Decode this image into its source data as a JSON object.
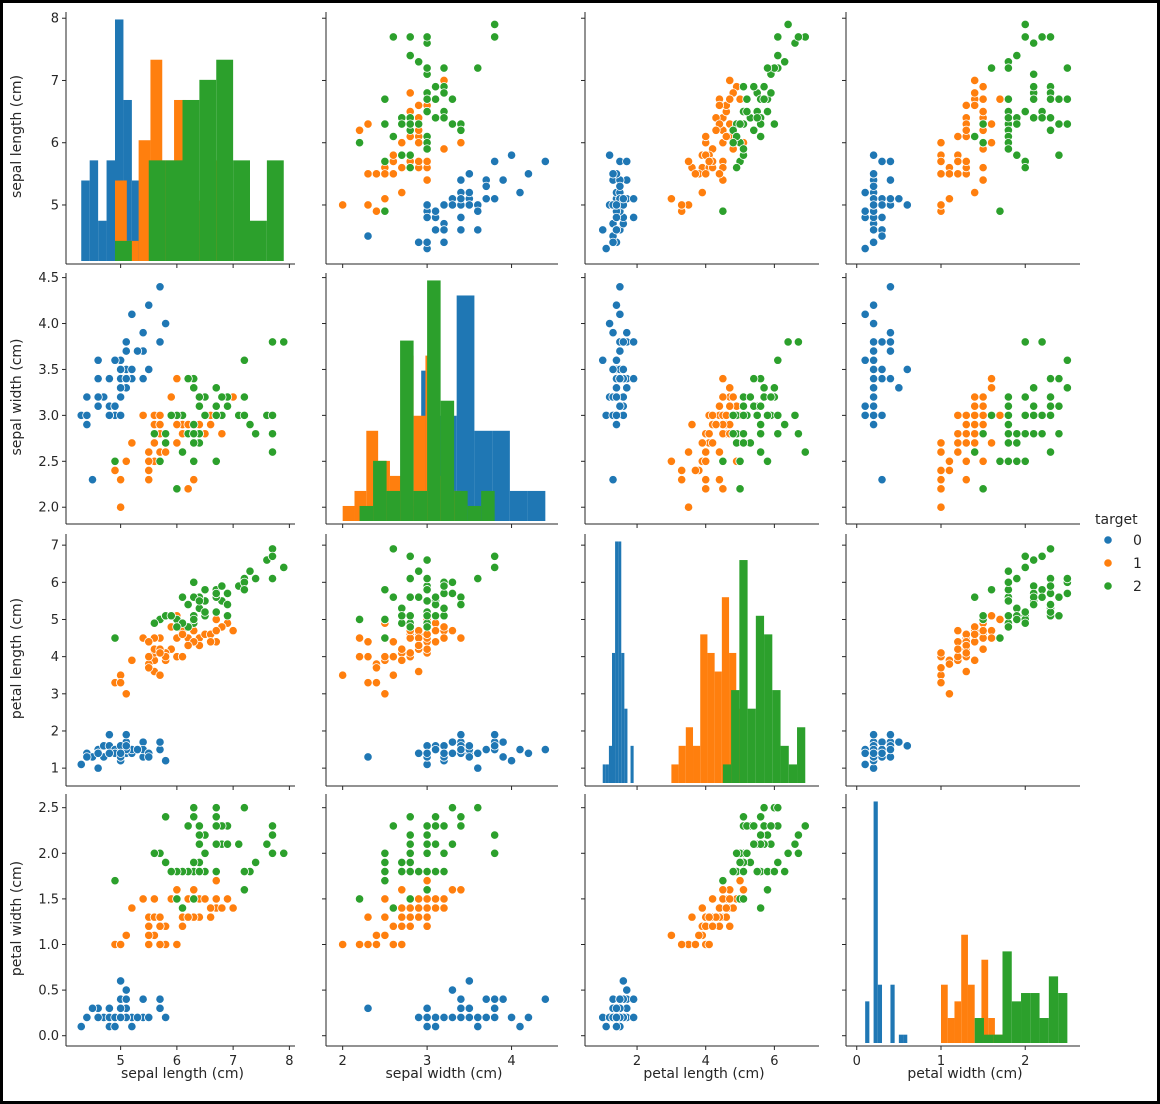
{
  "colors": {
    "0": "#1f77b4",
    "1": "#ff7f0e",
    "2": "#2ca02c",
    "spine": "#262626",
    "point_edge": "#ffffff"
  },
  "chart_data": {
    "type": "scatter",
    "layout": "pairplot",
    "diagonal": "histogram",
    "variables": [
      "sepal length (cm)",
      "sepal width (cm)",
      "petal length (cm)",
      "petal width (cm)"
    ],
    "hue": "target",
    "legend": {
      "title": "target",
      "entries": [
        "0",
        "1",
        "2"
      ],
      "placement": "right"
    },
    "axes": {
      "sepal length (cm)": {
        "lim": [
          4.1,
          8.1
        ],
        "ticks": [
          5,
          6,
          7,
          8
        ]
      },
      "sepal width (cm)": {
        "lim": [
          1.85,
          4.55
        ],
        "ticks": [
          2.0,
          2.5,
          3.0,
          3.5,
          4.0,
          4.5
        ],
        "xticks": [
          2,
          3,
          4
        ]
      },
      "petal length (cm)": {
        "lim": [
          0.6,
          7.3
        ],
        "ticks": [
          1,
          2,
          3,
          4,
          5,
          6,
          7
        ],
        "xticks": [
          2,
          4,
          6
        ]
      },
      "petal width (cm)": {
        "lim": [
          -0.08,
          2.65
        ],
        "ticks": [
          0.0,
          0.5,
          1.0,
          1.5,
          2.0,
          2.5
        ],
        "xticks": [
          0,
          1,
          2
        ]
      }
    },
    "series": [
      {
        "name": "0",
        "values": [
          [
            5.1,
            3.5,
            1.4,
            0.2
          ],
          [
            4.9,
            3.0,
            1.4,
            0.2
          ],
          [
            4.7,
            3.2,
            1.3,
            0.2
          ],
          [
            4.6,
            3.1,
            1.5,
            0.2
          ],
          [
            5.0,
            3.6,
            1.4,
            0.2
          ],
          [
            5.4,
            3.9,
            1.7,
            0.4
          ],
          [
            4.6,
            3.4,
            1.4,
            0.3
          ],
          [
            5.0,
            3.4,
            1.5,
            0.2
          ],
          [
            4.4,
            2.9,
            1.4,
            0.2
          ],
          [
            4.9,
            3.1,
            1.5,
            0.1
          ],
          [
            5.4,
            3.7,
            1.5,
            0.2
          ],
          [
            4.8,
            3.4,
            1.6,
            0.2
          ],
          [
            4.8,
            3.0,
            1.4,
            0.1
          ],
          [
            4.3,
            3.0,
            1.1,
            0.1
          ],
          [
            5.8,
            4.0,
            1.2,
            0.2
          ],
          [
            5.7,
            4.4,
            1.5,
            0.4
          ],
          [
            5.4,
            3.9,
            1.3,
            0.4
          ],
          [
            5.1,
            3.5,
            1.4,
            0.3
          ],
          [
            5.7,
            3.8,
            1.7,
            0.3
          ],
          [
            5.1,
            3.8,
            1.5,
            0.3
          ],
          [
            5.4,
            3.4,
            1.7,
            0.2
          ],
          [
            5.1,
            3.7,
            1.5,
            0.4
          ],
          [
            4.6,
            3.6,
            1.0,
            0.2
          ],
          [
            5.1,
            3.3,
            1.7,
            0.5
          ],
          [
            4.8,
            3.4,
            1.9,
            0.2
          ],
          [
            5.0,
            3.0,
            1.6,
            0.2
          ],
          [
            5.0,
            3.4,
            1.6,
            0.4
          ],
          [
            5.2,
            3.5,
            1.5,
            0.2
          ],
          [
            5.2,
            3.4,
            1.4,
            0.2
          ],
          [
            4.7,
            3.2,
            1.6,
            0.2
          ],
          [
            4.8,
            3.1,
            1.6,
            0.2
          ],
          [
            5.4,
            3.4,
            1.5,
            0.4
          ],
          [
            5.2,
            4.1,
            1.5,
            0.1
          ],
          [
            5.5,
            4.2,
            1.4,
            0.2
          ],
          [
            4.9,
            3.1,
            1.5,
            0.2
          ],
          [
            5.0,
            3.2,
            1.2,
            0.2
          ],
          [
            5.5,
            3.5,
            1.3,
            0.2
          ],
          [
            4.9,
            3.6,
            1.4,
            0.1
          ],
          [
            4.4,
            3.0,
            1.3,
            0.2
          ],
          [
            5.1,
            3.4,
            1.5,
            0.2
          ],
          [
            5.0,
            3.5,
            1.3,
            0.3
          ],
          [
            4.5,
            2.3,
            1.3,
            0.3
          ],
          [
            4.4,
            3.2,
            1.3,
            0.2
          ],
          [
            5.0,
            3.5,
            1.6,
            0.6
          ],
          [
            5.1,
            3.8,
            1.9,
            0.4
          ],
          [
            4.8,
            3.0,
            1.4,
            0.3
          ],
          [
            5.1,
            3.8,
            1.6,
            0.2
          ],
          [
            4.6,
            3.2,
            1.4,
            0.2
          ],
          [
            5.3,
            3.7,
            1.5,
            0.2
          ],
          [
            5.0,
            3.3,
            1.4,
            0.2
          ]
        ]
      },
      {
        "name": "1",
        "values": [
          [
            7.0,
            3.2,
            4.7,
            1.4
          ],
          [
            6.4,
            3.2,
            4.5,
            1.5
          ],
          [
            6.9,
            3.1,
            4.9,
            1.5
          ],
          [
            5.5,
            2.3,
            4.0,
            1.3
          ],
          [
            6.5,
            2.8,
            4.6,
            1.5
          ],
          [
            5.7,
            2.8,
            4.5,
            1.3
          ],
          [
            6.3,
            3.3,
            4.7,
            1.6
          ],
          [
            4.9,
            2.4,
            3.3,
            1.0
          ],
          [
            6.6,
            2.9,
            4.6,
            1.3
          ],
          [
            5.2,
            2.7,
            3.9,
            1.4
          ],
          [
            5.0,
            2.0,
            3.5,
            1.0
          ],
          [
            5.9,
            3.0,
            4.2,
            1.5
          ],
          [
            6.0,
            2.2,
            4.0,
            1.0
          ],
          [
            6.1,
            2.9,
            4.7,
            1.4
          ],
          [
            5.6,
            2.9,
            3.6,
            1.3
          ],
          [
            6.7,
            3.1,
            4.4,
            1.4
          ],
          [
            5.6,
            3.0,
            4.5,
            1.5
          ],
          [
            5.8,
            2.7,
            4.1,
            1.0
          ],
          [
            6.2,
            2.2,
            4.5,
            1.5
          ],
          [
            5.6,
            2.5,
            3.9,
            1.1
          ],
          [
            5.9,
            3.2,
            4.8,
            1.8
          ],
          [
            6.1,
            2.8,
            4.0,
            1.3
          ],
          [
            6.3,
            2.5,
            4.9,
            1.5
          ],
          [
            6.1,
            2.8,
            4.7,
            1.2
          ],
          [
            6.4,
            2.9,
            4.3,
            1.3
          ],
          [
            6.6,
            3.0,
            4.4,
            1.4
          ],
          [
            6.8,
            2.8,
            4.8,
            1.4
          ],
          [
            6.7,
            3.0,
            5.0,
            1.7
          ],
          [
            6.0,
            2.9,
            4.5,
            1.5
          ],
          [
            5.7,
            2.6,
            3.5,
            1.0
          ],
          [
            5.5,
            2.4,
            3.8,
            1.1
          ],
          [
            5.5,
            2.4,
            3.7,
            1.0
          ],
          [
            5.8,
            2.7,
            3.9,
            1.2
          ],
          [
            6.0,
            2.7,
            5.1,
            1.6
          ],
          [
            5.4,
            3.0,
            4.5,
            1.5
          ],
          [
            6.0,
            3.4,
            4.5,
            1.6
          ],
          [
            6.7,
            3.1,
            4.7,
            1.5
          ],
          [
            6.3,
            2.3,
            4.4,
            1.3
          ],
          [
            5.6,
            3.0,
            4.1,
            1.3
          ],
          [
            5.5,
            2.5,
            4.0,
            1.3
          ],
          [
            5.5,
            2.6,
            4.4,
            1.2
          ],
          [
            6.1,
            3.0,
            4.6,
            1.4
          ],
          [
            5.8,
            2.6,
            4.0,
            1.2
          ],
          [
            5.0,
            2.3,
            3.3,
            1.0
          ],
          [
            5.6,
            2.7,
            4.2,
            1.3
          ],
          [
            5.7,
            3.0,
            4.2,
            1.2
          ],
          [
            5.7,
            2.9,
            4.2,
            1.3
          ],
          [
            6.2,
            2.9,
            4.3,
            1.3
          ],
          [
            5.1,
            2.5,
            3.0,
            1.1
          ],
          [
            5.7,
            2.8,
            4.1,
            1.3
          ]
        ]
      },
      {
        "name": "2",
        "values": [
          [
            6.3,
            3.3,
            6.0,
            2.5
          ],
          [
            5.8,
            2.7,
            5.1,
            1.9
          ],
          [
            7.1,
            3.0,
            5.9,
            2.1
          ],
          [
            6.3,
            2.9,
            5.6,
            1.8
          ],
          [
            6.5,
            3.0,
            5.8,
            2.2
          ],
          [
            7.6,
            3.0,
            6.6,
            2.1
          ],
          [
            4.9,
            2.5,
            4.5,
            1.7
          ],
          [
            7.3,
            2.9,
            6.3,
            1.8
          ],
          [
            6.7,
            2.5,
            5.8,
            1.8
          ],
          [
            7.2,
            3.6,
            6.1,
            2.5
          ],
          [
            6.5,
            3.2,
            5.1,
            2.0
          ],
          [
            6.4,
            2.7,
            5.3,
            1.9
          ],
          [
            6.8,
            3.0,
            5.5,
            2.1
          ],
          [
            5.7,
            2.5,
            5.0,
            2.0
          ],
          [
            5.8,
            2.8,
            5.1,
            2.4
          ],
          [
            6.4,
            3.2,
            5.3,
            2.3
          ],
          [
            6.5,
            3.0,
            5.5,
            1.8
          ],
          [
            7.7,
            3.8,
            6.7,
            2.2
          ],
          [
            7.7,
            2.6,
            6.9,
            2.3
          ],
          [
            6.0,
            2.2,
            5.0,
            1.5
          ],
          [
            6.9,
            3.2,
            5.7,
            2.3
          ],
          [
            5.6,
            2.8,
            4.9,
            2.0
          ],
          [
            7.7,
            2.8,
            6.7,
            2.0
          ],
          [
            6.3,
            2.7,
            4.9,
            1.8
          ],
          [
            6.7,
            3.3,
            5.7,
            2.1
          ],
          [
            7.2,
            3.2,
            6.0,
            1.8
          ],
          [
            6.2,
            2.8,
            4.8,
            1.8
          ],
          [
            6.1,
            3.0,
            4.9,
            1.8
          ],
          [
            6.4,
            2.8,
            5.6,
            2.1
          ],
          [
            7.2,
            3.0,
            5.8,
            1.6
          ],
          [
            7.4,
            2.8,
            6.1,
            1.9
          ],
          [
            7.9,
            3.8,
            6.4,
            2.0
          ],
          [
            6.4,
            2.8,
            5.6,
            2.2
          ],
          [
            6.3,
            2.8,
            5.1,
            1.5
          ],
          [
            6.1,
            2.6,
            5.6,
            1.4
          ],
          [
            7.7,
            3.0,
            6.1,
            2.3
          ],
          [
            6.3,
            3.4,
            5.6,
            2.4
          ],
          [
            6.4,
            3.1,
            5.5,
            1.8
          ],
          [
            6.0,
            3.0,
            4.8,
            1.8
          ],
          [
            6.9,
            3.1,
            5.4,
            2.1
          ],
          [
            6.7,
            3.1,
            5.6,
            2.4
          ],
          [
            6.9,
            3.1,
            5.1,
            2.3
          ],
          [
            5.8,
            2.7,
            5.1,
            1.9
          ],
          [
            6.8,
            3.2,
            5.9,
            2.3
          ],
          [
            6.7,
            3.3,
            5.7,
            2.5
          ],
          [
            6.7,
            3.0,
            5.2,
            2.3
          ],
          [
            6.3,
            2.5,
            5.0,
            1.9
          ],
          [
            6.5,
            3.0,
            5.2,
            2.0
          ],
          [
            6.2,
            3.4,
            5.4,
            2.3
          ],
          [
            5.9,
            3.0,
            5.1,
            1.8
          ]
        ]
      }
    ]
  }
}
